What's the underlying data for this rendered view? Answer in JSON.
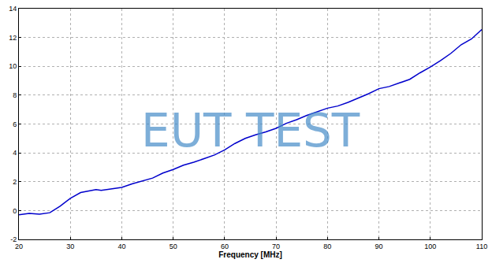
{
  "chart_data": {
    "type": "line",
    "x_label": "Frequency [MHz]",
    "watermark": "EUT TEST",
    "x": [
      20,
      22,
      24,
      26,
      28,
      30,
      32,
      34,
      35,
      36,
      38,
      40,
      42,
      44,
      46,
      48,
      50,
      52,
      54,
      56,
      58,
      60,
      62,
      64,
      66,
      68,
      70,
      72,
      74,
      76,
      78,
      80,
      82,
      84,
      86,
      88,
      90,
      92,
      94,
      96,
      98,
      100,
      102,
      104,
      106,
      108,
      110
    ],
    "values": [
      -0.3,
      -0.2,
      -0.25,
      -0.15,
      0.3,
      0.85,
      1.25,
      1.4,
      1.45,
      1.4,
      1.5,
      1.6,
      1.85,
      2.05,
      2.25,
      2.6,
      2.85,
      3.15,
      3.35,
      3.6,
      3.85,
      4.2,
      4.65,
      5.0,
      5.25,
      5.45,
      5.7,
      6.05,
      6.3,
      6.6,
      6.85,
      7.1,
      7.25,
      7.5,
      7.8,
      8.1,
      8.45,
      8.6,
      8.85,
      9.1,
      9.55,
      9.95,
      10.4,
      10.9,
      11.5,
      11.9,
      12.55
    ],
    "color": "#0000cc",
    "xlim": [
      20,
      110
    ],
    "xticks": [
      20,
      30,
      40,
      50,
      60,
      70,
      80,
      90,
      100,
      110
    ],
    "ylim": [
      -2,
      14
    ],
    "yticks": [
      -2,
      0,
      2,
      4,
      6,
      8,
      10,
      12,
      14
    ],
    "grid": true
  }
}
